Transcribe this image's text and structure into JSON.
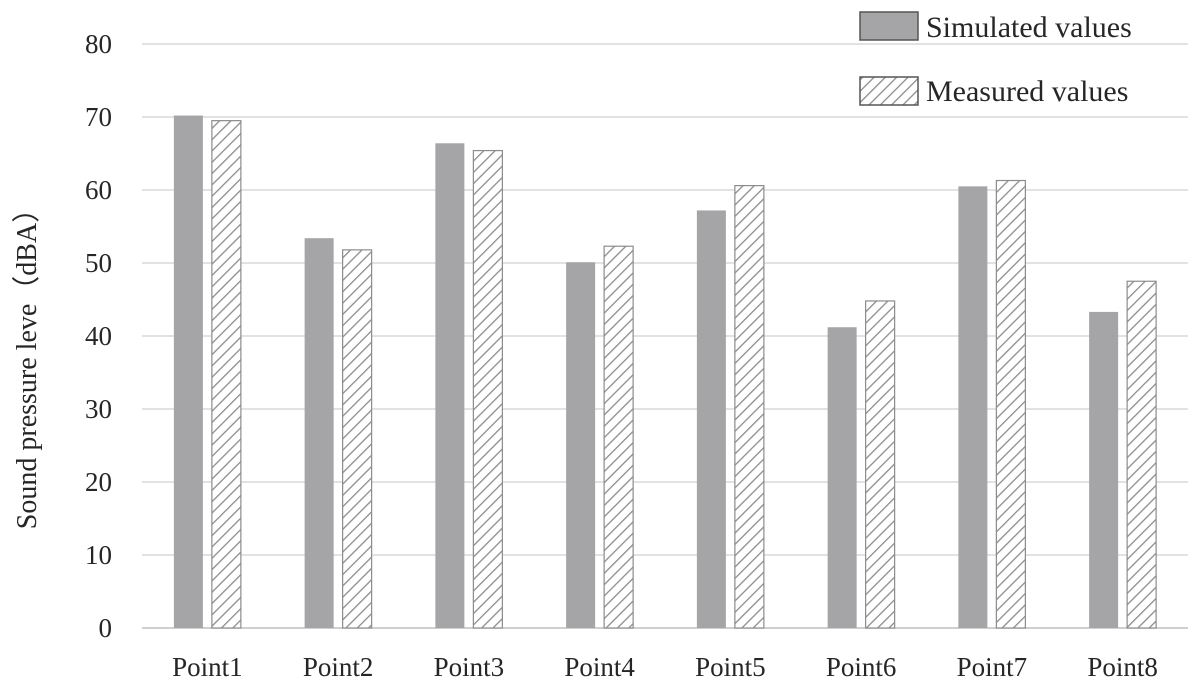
{
  "chart_data": {
    "type": "bar",
    "ylabel": "Sound pressure leve（dBA）",
    "xlabel": "",
    "categories": [
      "Point1",
      "Point2",
      "Point3",
      "Point4",
      "Point5",
      "Point6",
      "Point7",
      "Point8"
    ],
    "series": [
      {
        "name": "Simulated values",
        "values": [
          70.2,
          53.4,
          66.4,
          50.1,
          57.2,
          41.2,
          60.5,
          43.3
        ],
        "color": "#a5a5a7",
        "style": "solid"
      },
      {
        "name": "Measured values",
        "values": [
          69.5,
          51.8,
          65.4,
          52.3,
          60.6,
          44.8,
          61.3,
          47.5
        ],
        "color": "#ffffff",
        "style": "hatched"
      }
    ],
    "ylim": [
      0,
      80
    ],
    "yticks": [
      0,
      10,
      20,
      30,
      40,
      50,
      60,
      70,
      80
    ],
    "grid": true,
    "legend_position": "top-right"
  }
}
